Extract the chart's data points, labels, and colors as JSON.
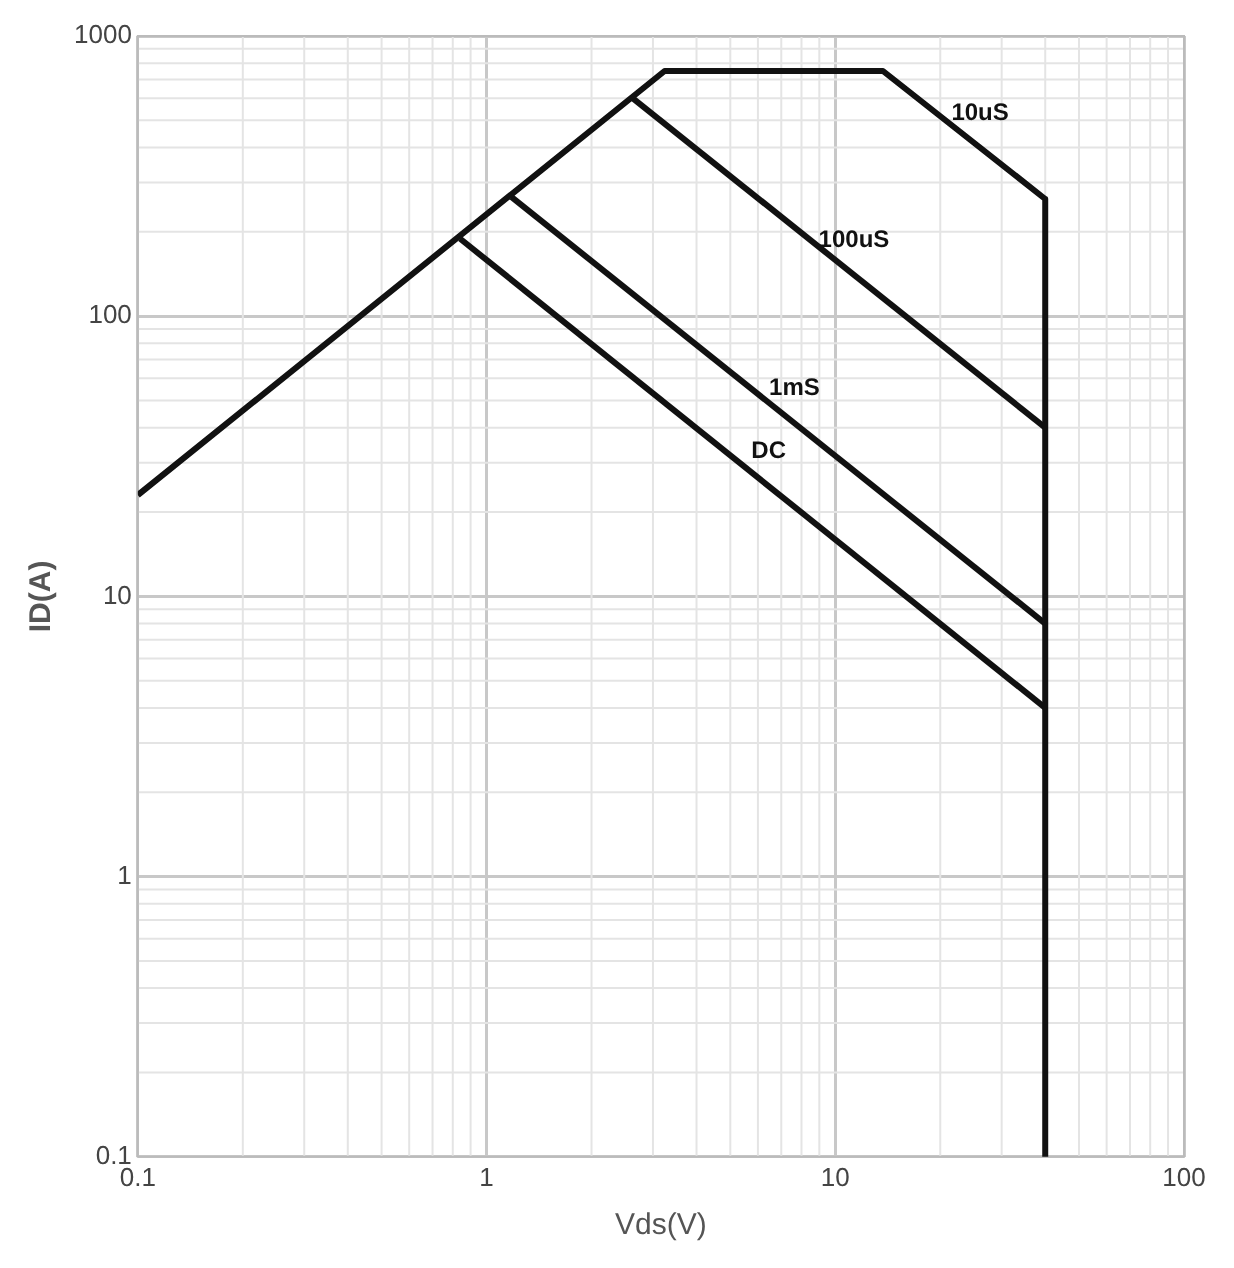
{
  "chart_data": {
    "type": "line",
    "xlabel": "Vds(V)",
    "ylabel": "ID(A)",
    "log": "xy",
    "xlim": [
      0.1,
      100
    ],
    "ylim": [
      0.1,
      1000
    ],
    "xticks": [
      0.1,
      1,
      10,
      100
    ],
    "yticks": [
      0.1,
      1,
      10,
      100,
      1000
    ],
    "grid": true,
    "legend": false,
    "marker": "none",
    "line_style": "solid",
    "series": [
      {
        "name": "10uS",
        "color": "#111111",
        "x": [
          0.1,
          3.24,
          13.7,
          40,
          40
        ],
        "values": [
          23,
          750,
          750,
          262,
          0.1
        ]
      },
      {
        "name": "100uS",
        "color": "#111111",
        "x": [
          2.59,
          40
        ],
        "values": [
          608,
          40
        ]
      },
      {
        "name": "1mS",
        "color": "#111111",
        "x": [
          1.18,
          40
        ],
        "values": [
          266,
          8
        ]
      },
      {
        "name": "DC",
        "color": "#111111",
        "x": [
          0.84,
          40
        ],
        "values": [
          189,
          4
        ]
      }
    ]
  }
}
